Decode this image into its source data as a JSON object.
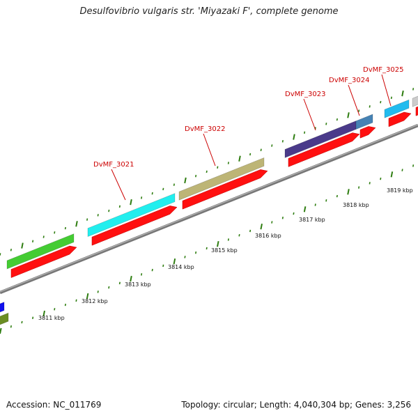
{
  "title": "Desulfovibrio vulgaris str. 'Miyazaki F', complete genome",
  "accession": "Accession: NC_011769",
  "topology": "Topology: circular; Length: 4,040,304 bp; Genes: 3,256",
  "kbp_labels": [
    "3811 kbp",
    "3812 kbp",
    "3813 kbp",
    "3814 kbp",
    "3815 kbp",
    "3816 kbp",
    "3817 kbp",
    "3818 kbp",
    "3819 kbp"
  ],
  "gene_labels": [
    "DvMF_3021",
    "DvMF_3022",
    "DvMF_3023",
    "DvMF_3024",
    "DvMF_3025"
  ],
  "colors": {
    "backbone": "#8c8c8c",
    "tick": "#2e7d10",
    "cds": "#ff1010",
    "label": "#cc0000",
    "gene_green": "#44cc33",
    "gene_cyan": "#22eeee",
    "gene_khaki": "#bdb576",
    "gene_purple": "#4a3a8a",
    "gene_steel": "#4682b4",
    "gene_sky": "#22bbee",
    "gene_grey": "#cccccc",
    "gene_blue": "#1010ee",
    "gene_olive": "#6b8e23"
  }
}
